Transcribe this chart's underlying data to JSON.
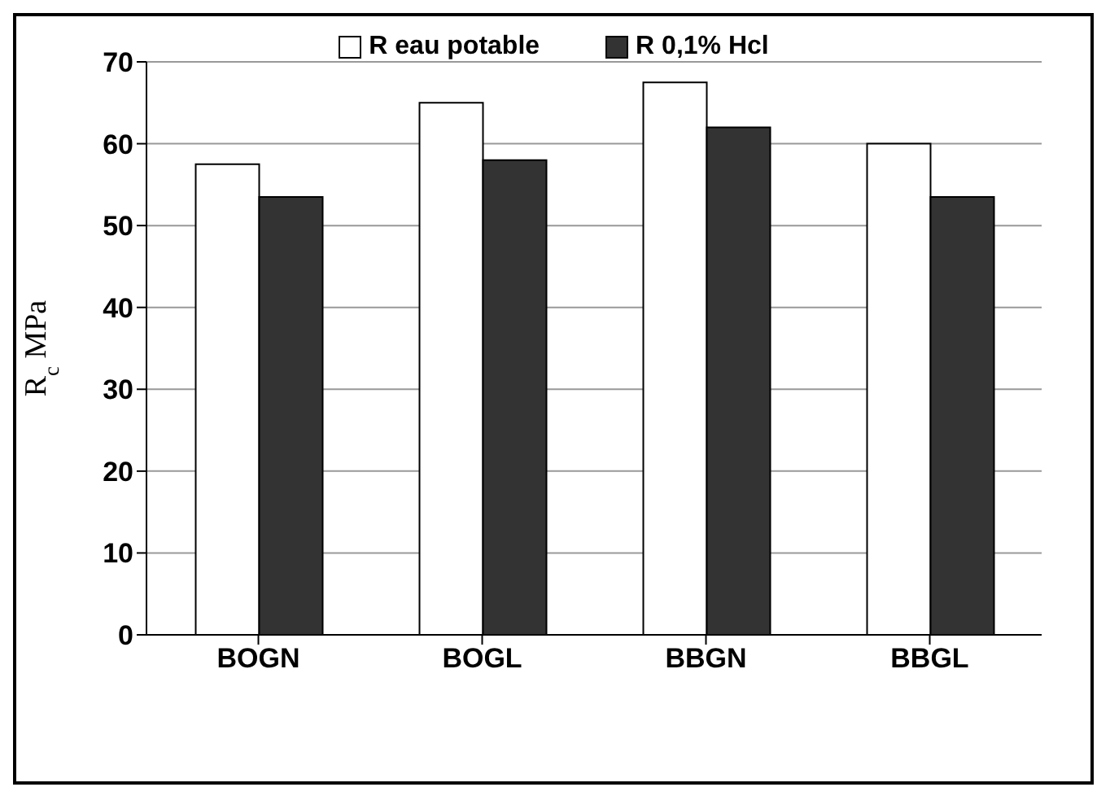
{
  "chart_data": {
    "type": "bar",
    "ylabel": "R$_{c}$ MPa",
    "categories": [
      "BOGN",
      "BOGL",
      "BBGN",
      "BBGL"
    ],
    "series": [
      {
        "name": "R eau potable",
        "color": "#ffffff",
        "values": [
          57.5,
          65,
          67.5,
          60
        ]
      },
      {
        "name": "R 0,1% Hcl",
        "color": "#333333",
        "values": [
          53.5,
          58,
          62,
          53.5
        ]
      }
    ],
    "ylim": [
      0,
      70
    ],
    "yticks": [
      0,
      10,
      20,
      30,
      40,
      50,
      60,
      70
    ],
    "grid": "y",
    "legend": "top"
  }
}
